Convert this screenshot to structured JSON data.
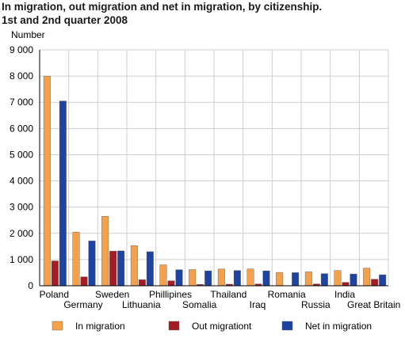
{
  "chart_data": {
    "type": "bar",
    "title_line1": "In migration, out migration and net in migration, by citizenship.",
    "title_line2": "1st and 2nd quarter 2008",
    "ylabel": "Number",
    "ylim": [
      0,
      9000
    ],
    "yticks": [
      0,
      1000,
      2000,
      3000,
      4000,
      5000,
      6000,
      7000,
      8000,
      9000
    ],
    "ytick_labels": [
      "0",
      "1 000",
      "2 000",
      "3 000",
      "4 000",
      "5 000",
      "6 000",
      "7 000",
      "8 000",
      "9 000"
    ],
    "grid": true,
    "legend_position": "bottom",
    "categories": [
      "Poland",
      "Germany",
      "Sweden",
      "Lithuania",
      "Phillipines",
      "Somalia",
      "Thailand",
      "Iraq",
      "Romania",
      "Russia",
      "India",
      "Great Britain"
    ],
    "series": [
      {
        "name": "In migration",
        "color": "#f5a04a",
        "values": [
          8000,
          2050,
          2650,
          1530,
          800,
          620,
          640,
          640,
          510,
          530,
          580,
          670
        ]
      },
      {
        "name": "Out migrationt",
        "color": "#a51c24",
        "values": [
          950,
          340,
          1320,
          230,
          190,
          50,
          60,
          70,
          10,
          70,
          130,
          250
        ]
      },
      {
        "name": "Net in migration",
        "color": "#1f44a0",
        "values": [
          7050,
          1710,
          1330,
          1300,
          610,
          570,
          580,
          570,
          500,
          460,
          450,
          420
        ]
      }
    ]
  }
}
